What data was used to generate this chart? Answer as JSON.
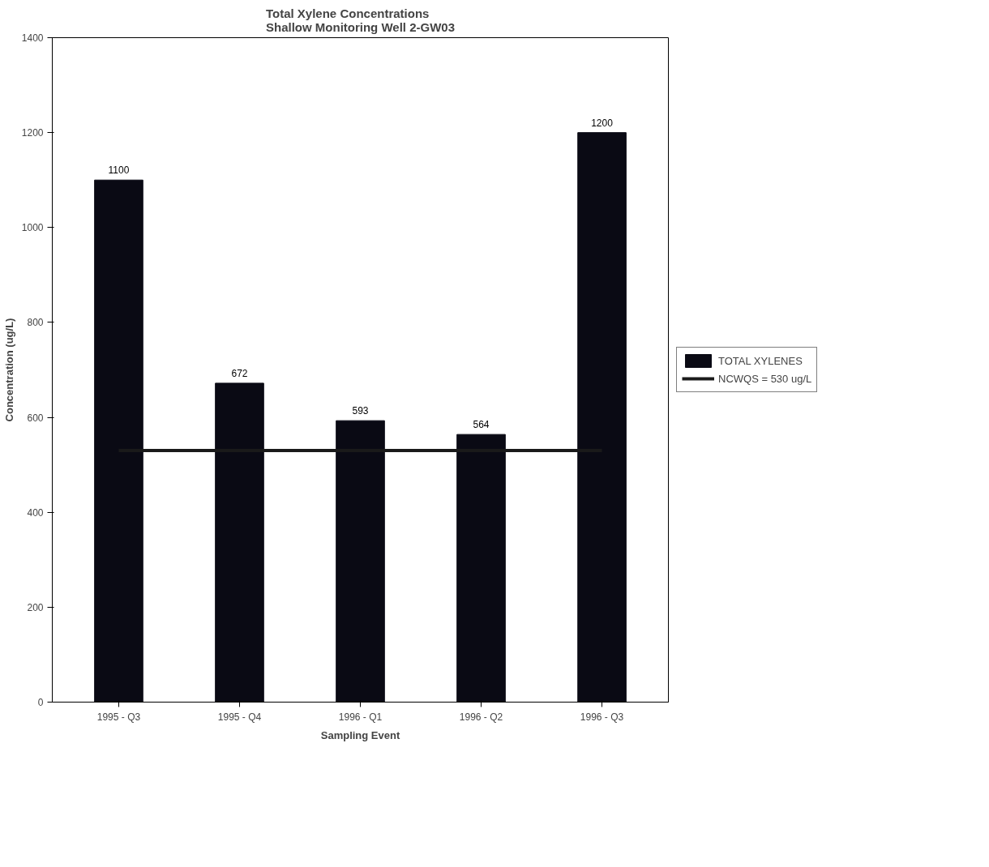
{
  "chart_data": {
    "type": "bar",
    "title": "Total Xylene Concentrations\nShallow Monitoring Well 2-GW03",
    "xlabel": "Sampling Event",
    "ylabel": "Concentration (ug/L)",
    "categories": [
      "1995 - Q3",
      "1995 - Q4",
      "1996 - Q1",
      "1996 - Q2",
      "1996 - Q3"
    ],
    "series": [
      {
        "name": "TOTAL XYLENES",
        "color": "#0a0a14",
        "values": [
          1100,
          672,
          593,
          564,
          1200
        ],
        "value_labels": [
          "1100",
          "672",
          "593",
          "564",
          "1200"
        ]
      },
      {
        "name": "NCWQS = 530 ug/L",
        "type": "line",
        "color": "#1a1a1a",
        "values": [
          530,
          530,
          530,
          530,
          530
        ]
      }
    ],
    "ylim": [
      0,
      1400
    ],
    "yticks": [
      0,
      200,
      400,
      600,
      800,
      1000,
      1200,
      1400
    ],
    "grid": false,
    "legend": "right",
    "marker": "none",
    "line_style": "solid"
  }
}
